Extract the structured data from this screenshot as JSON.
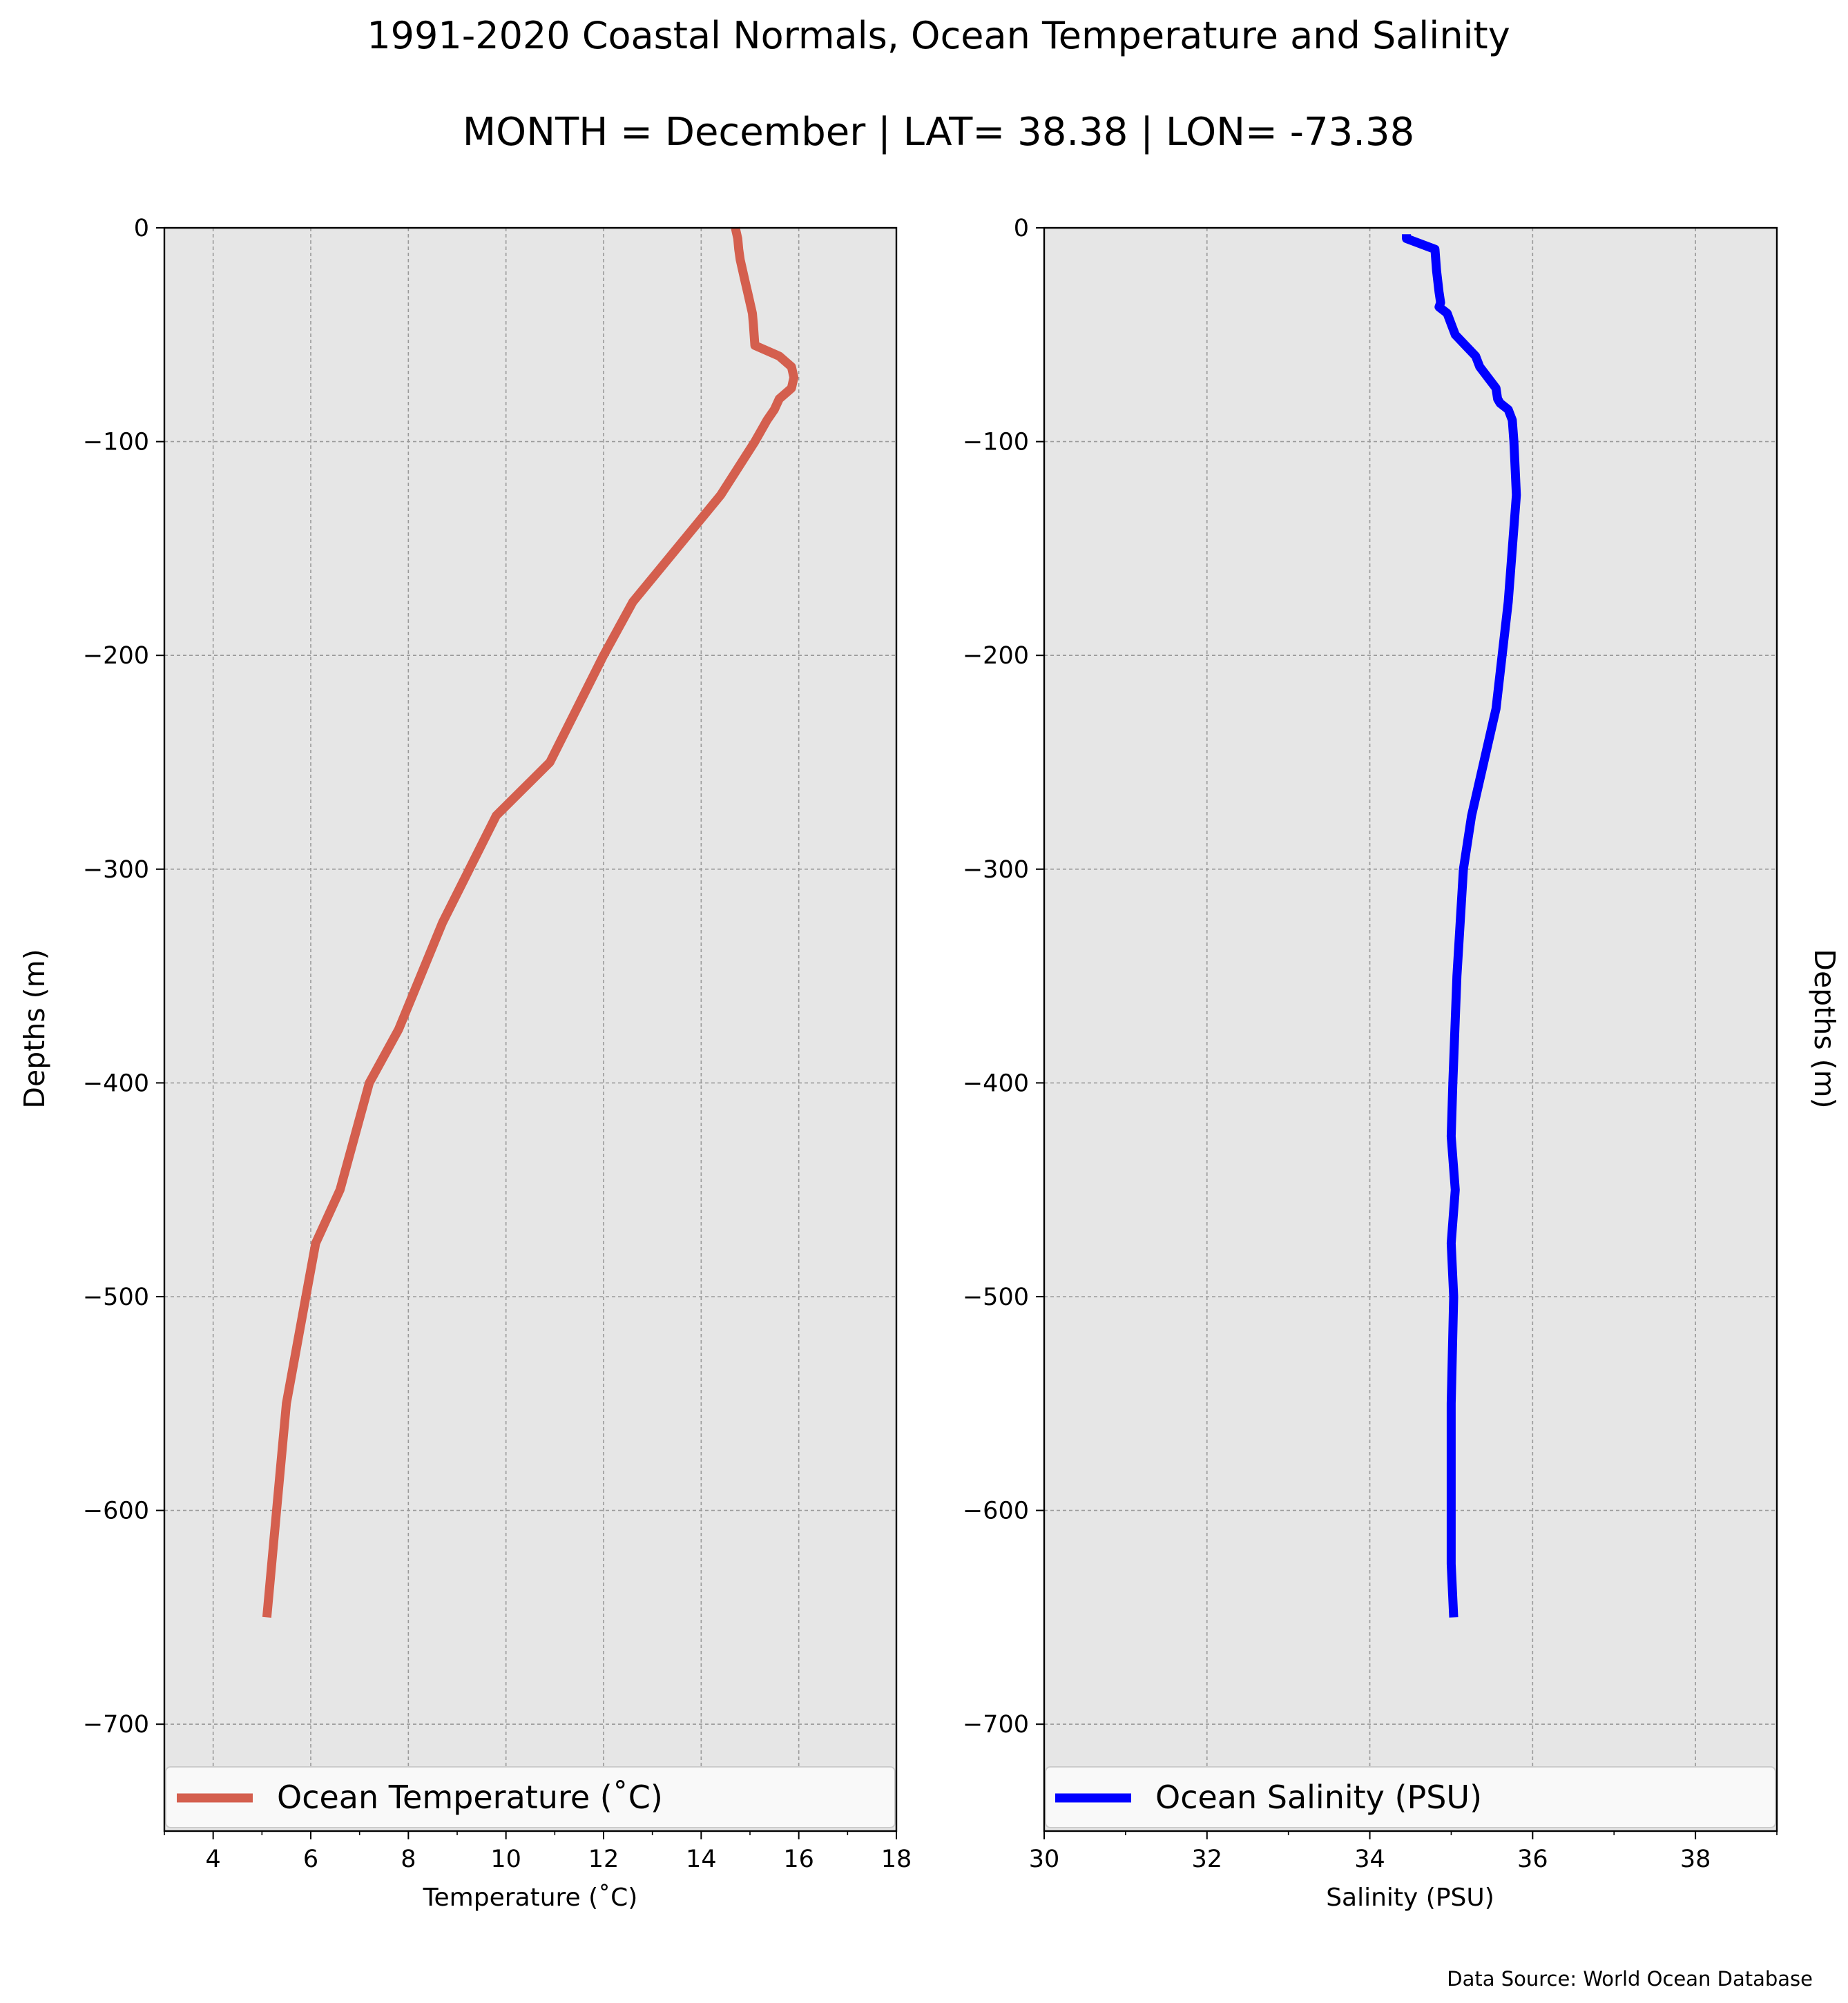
{
  "figure": {
    "title_line1": "1991-2020 Coastal Normals, Ocean Temperature and Salinity",
    "title_line2": "MONTH = December | LAT= 38.38 | LON= -73.38",
    "source": "Data Source: World Ocean Database"
  },
  "chart_data": [
    {
      "type": "line",
      "xlabel": "Temperature (˚C)",
      "ylabel": "Depths (m)",
      "xlim": [
        3,
        18
      ],
      "ylim": [
        -750,
        0
      ],
      "xticks": [
        4,
        6,
        8,
        10,
        12,
        14,
        16,
        18
      ],
      "yticks": [
        0,
        -100,
        -200,
        -300,
        -400,
        -500,
        -600,
        -700
      ],
      "grid": true,
      "legend_position": "bottom",
      "series": [
        {
          "name": "Ocean Temperature (˚C)",
          "color": "#d45f4e",
          "x": [
            14.7,
            14.75,
            14.77,
            14.8,
            14.9,
            14.95,
            15.05,
            15.07,
            15.1,
            15.6,
            15.85,
            15.9,
            15.85,
            15.7,
            15.6,
            15.5,
            15.35,
            15.1,
            14.4,
            13.5,
            12.6,
            12.0,
            10.9,
            9.8,
            8.7,
            7.8,
            7.2,
            6.6,
            6.1,
            5.9,
            5.5,
            5.3,
            5.1
          ],
          "y": [
            0,
            -5,
            -10,
            -15,
            -25,
            -30,
            -40,
            -45,
            -55,
            -60,
            -65,
            -70,
            -75,
            -78,
            -80,
            -85,
            -90,
            -100,
            -125,
            -150,
            -175,
            -200,
            -250,
            -275,
            -325,
            -375,
            -400,
            -450,
            -475,
            -500,
            -550,
            -600,
            -650
          ]
        }
      ]
    },
    {
      "type": "line",
      "xlabel": "Salinity (PSU)",
      "ylabel": "Depths (m)",
      "xlim": [
        30,
        39
      ],
      "ylim": [
        -750,
        0
      ],
      "xticks": [
        30,
        32,
        34,
        36,
        38
      ],
      "yticks": [
        0,
        -100,
        -200,
        -300,
        -400,
        -500,
        -600,
        -700
      ],
      "grid": true,
      "legend_position": "bottom",
      "series": [
        {
          "name": "Ocean Salinity (PSU)",
          "color": "#0000ff",
          "x": [
            34.45,
            34.45,
            34.8,
            34.82,
            34.85,
            34.87,
            34.85,
            34.95,
            35.0,
            35.05,
            35.3,
            35.35,
            35.45,
            35.55,
            35.57,
            35.6,
            35.7,
            35.75,
            35.77,
            35.8,
            35.7,
            35.55,
            35.4,
            35.25,
            35.15,
            35.07,
            35.02,
            35.0,
            35.05,
            35.0,
            35.03,
            35.0,
            35.0,
            35.0,
            35.03
          ],
          "y": [
            -3,
            -5,
            -10,
            -20,
            -30,
            -35,
            -37,
            -40,
            -45,
            -50,
            -60,
            -65,
            -70,
            -75,
            -80,
            -82,
            -85,
            -90,
            -100,
            -125,
            -175,
            -225,
            -250,
            -275,
            -300,
            -350,
            -400,
            -425,
            -450,
            -475,
            -500,
            -550,
            -600,
            -625,
            -650
          ]
        }
      ]
    }
  ]
}
